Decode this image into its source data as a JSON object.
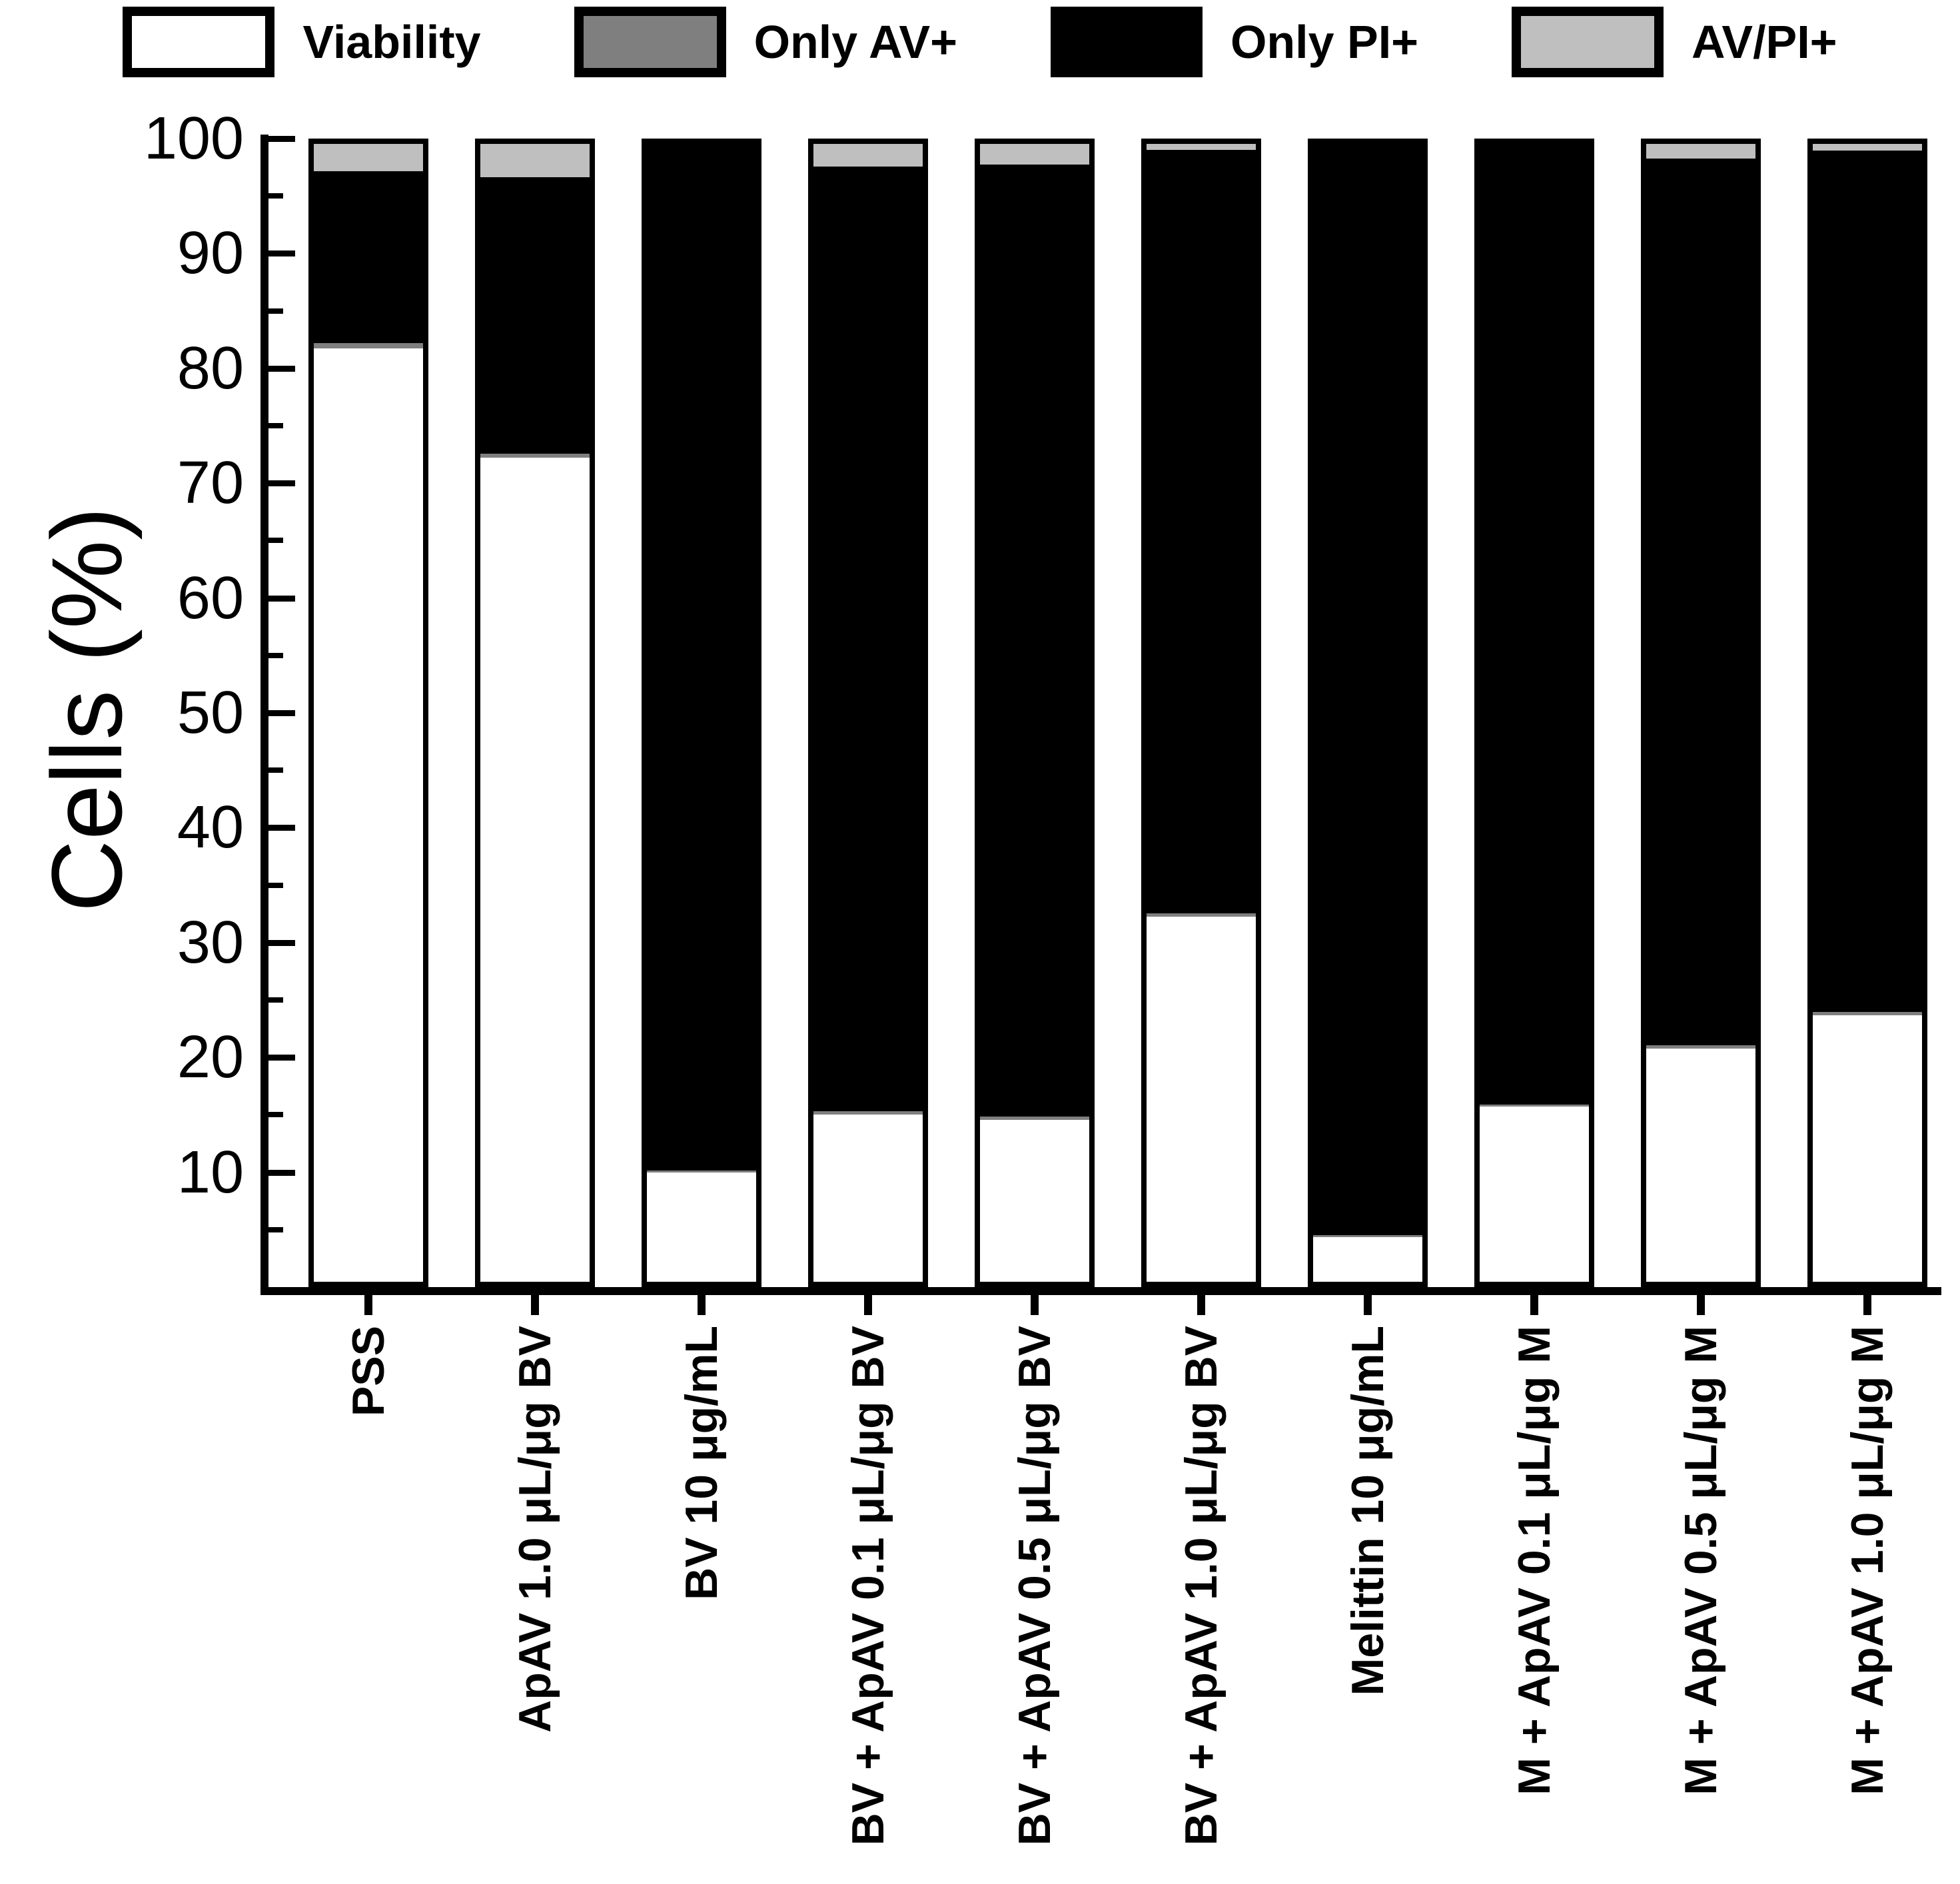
{
  "legend": [
    {
      "label": "Viability",
      "color": "#ffffff"
    },
    {
      "label": "Only AV+",
      "color": "#7f7f7f"
    },
    {
      "label": "Only PI+",
      "color": "#000000"
    },
    {
      "label": "AV/PI+",
      "color": "#bfbfbf"
    }
  ],
  "y_axis": {
    "title": "Cells (%)",
    "tick_labels": [
      "100",
      "90",
      "80",
      "70",
      "60",
      "50",
      "40",
      "30",
      "20",
      "10"
    ],
    "major_ticks": [
      100,
      90,
      80,
      70,
      60,
      50,
      40,
      30,
      20,
      10
    ],
    "minor_ticks": [
      95,
      85,
      75,
      65,
      55,
      45,
      35,
      25,
      15,
      5
    ],
    "min": 0,
    "max": 100
  },
  "chart_data": {
    "type": "bar",
    "stacked": true,
    "title": "",
    "xlabel": "",
    "ylabel": "Cells (%)",
    "ylim": [
      0,
      100
    ],
    "grid": false,
    "legend_position": "top",
    "categories": [
      "PSS",
      "ApAV 1.0 μL/μg BV",
      "BV 10 μg/mL",
      "BV + ApAV 0.1 μL/μg BV",
      "BV + ApAV 0.5 μL/μg BV",
      "BV + ApAV 1.0 μL/μg BV",
      "Melittin 10 μg/mL",
      "M + ApAV 0.1 μL/μg M",
      "M + ApAV 0.5 μL/μg M",
      "M + ApAV 1.0 μL/μg M"
    ],
    "series": [
      {
        "name": "Viability",
        "color": "#ffffff",
        "values": [
          82.0,
          72.4,
          9.6,
          14.7,
          14.2,
          32.1,
          3.9,
          15.4,
          20.5,
          23.4
        ]
      },
      {
        "name": "Only AV+",
        "color": "#7f7f7f",
        "values": [
          0.5,
          0.4,
          0.2,
          0.3,
          0.3,
          0.3,
          0.2,
          0.2,
          0.3,
          0.3
        ]
      },
      {
        "name": "Only PI+",
        "color": "#000000",
        "values": [
          15.1,
          24.3,
          90.2,
          83.0,
          83.7,
          67.1,
          95.9,
          84.4,
          77.9,
          75.7
        ]
      },
      {
        "name": "AV/PI+",
        "color": "#bfbfbf",
        "values": [
          2.4,
          2.9,
          0.0,
          2.0,
          1.8,
          0.5,
          0.0,
          0.0,
          1.3,
          0.6
        ]
      }
    ]
  }
}
